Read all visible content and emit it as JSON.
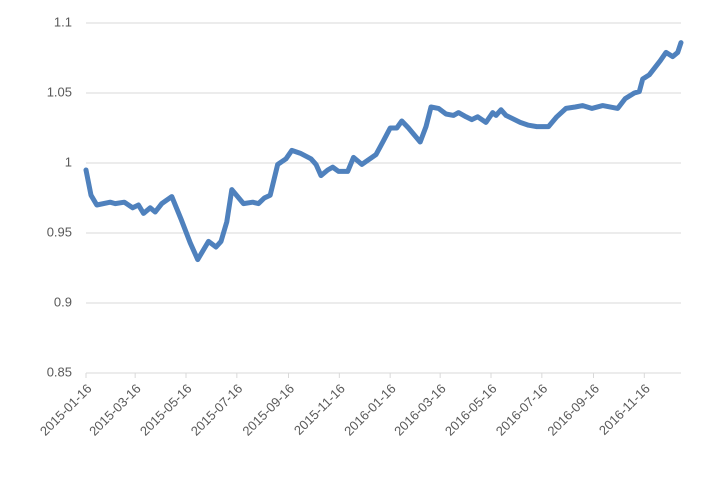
{
  "chart_data": {
    "type": "line",
    "color": "#4f81bd",
    "grid": true,
    "x": [
      "2015-01-16",
      "2015-01-22",
      "2015-01-29",
      "2015-02-14",
      "2015-02-20",
      "2015-03-03",
      "2015-03-13",
      "2015-03-20",
      "2015-03-26",
      "2015-04-03",
      "2015-04-09",
      "2015-04-17",
      "2015-04-29",
      "2015-05-10",
      "2015-05-21",
      "2015-05-30",
      "2015-06-12",
      "2015-06-21",
      "2015-06-27",
      "2015-07-04",
      "2015-07-10",
      "2015-07-24",
      "2015-08-04",
      "2015-08-11",
      "2015-08-18",
      "2015-08-25",
      "2015-09-03",
      "2015-09-13",
      "2015-09-20",
      "2015-09-30",
      "2015-10-13",
      "2015-10-19",
      "2015-10-25",
      "2015-11-02",
      "2015-11-08",
      "2015-11-15",
      "2015-11-26",
      "2015-12-03",
      "2015-12-13",
      "2015-12-30",
      "2016-01-09",
      "2016-01-16",
      "2016-01-24",
      "2016-01-30",
      "2016-02-07",
      "2016-02-21",
      "2016-02-28",
      "2016-03-05",
      "2016-03-14",
      "2016-03-23",
      "2016-04-01",
      "2016-04-07",
      "2016-04-16",
      "2016-04-23",
      "2016-04-30",
      "2016-05-10",
      "2016-05-18",
      "2016-05-22",
      "2016-05-28",
      "2016-06-03",
      "2016-06-20",
      "2016-06-30",
      "2016-07-10",
      "2016-07-24",
      "2016-08-03",
      "2016-08-14",
      "2016-08-25",
      "2016-09-03",
      "2016-09-14",
      "2016-09-27",
      "2016-10-15",
      "2016-10-24",
      "2016-11-04",
      "2016-11-10",
      "2016-11-14",
      "2016-11-22",
      "2016-12-05",
      "2016-12-12",
      "2016-12-20",
      "2016-12-26",
      "2016-12-30"
    ],
    "values": [
      0.995,
      0.977,
      0.97,
      0.972,
      0.971,
      0.972,
      0.968,
      0.97,
      0.964,
      0.968,
      0.965,
      0.971,
      0.976,
      0.96,
      0.943,
      0.931,
      0.944,
      0.94,
      0.944,
      0.958,
      0.981,
      0.971,
      0.972,
      0.971,
      0.975,
      0.977,
      0.999,
      1.003,
      1.009,
      1.007,
      1.003,
      0.999,
      0.991,
      0.995,
      0.997,
      0.994,
      0.994,
      1.004,
      0.999,
      1.006,
      1.017,
      1.025,
      1.025,
      1.03,
      1.025,
      1.015,
      1.026,
      1.04,
      1.039,
      1.035,
      1.034,
      1.036,
      1.033,
      1.031,
      1.033,
      1.029,
      1.036,
      1.034,
      1.038,
      1.034,
      1.029,
      1.027,
      1.026,
      1.026,
      1.033,
      1.039,
      1.04,
      1.041,
      1.039,
      1.041,
      1.039,
      1.046,
      1.05,
      1.051,
      1.06,
      1.063,
      1.073,
      1.079,
      1.076,
      1.079,
      1.086
    ],
    "xlim": [
      "2015-01-16",
      "2016-12-30"
    ],
    "xticks": [
      "2015-01-16",
      "2015-03-16",
      "2015-05-16",
      "2015-07-16",
      "2015-09-16",
      "2015-11-16",
      "2016-01-16",
      "2016-03-16",
      "2016-05-16",
      "2016-07-16",
      "2016-09-16",
      "2016-11-16"
    ],
    "ylim": [
      0.85,
      1.1
    ],
    "yticks": [
      0.85,
      0.9,
      0.95,
      1,
      1.05,
      1.1
    ]
  }
}
